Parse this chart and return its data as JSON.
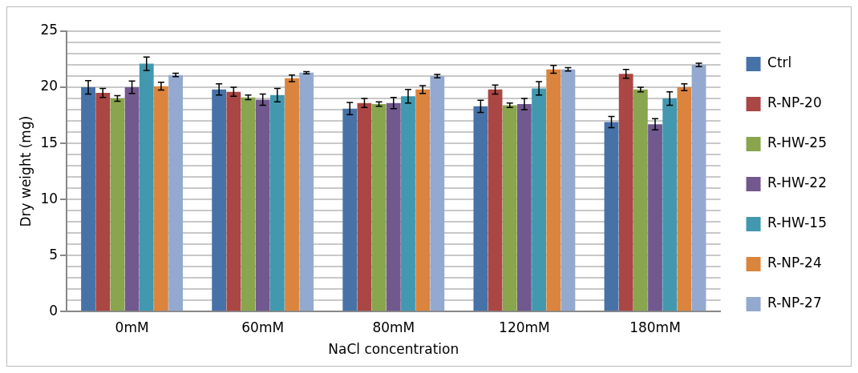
{
  "chart_data": {
    "type": "bar",
    "xlabel": "NaCl concentration",
    "ylabel": "Dry weight (mg)",
    "categories": [
      "0mM",
      "60mM",
      "80mM",
      "120mM",
      "180mM"
    ],
    "series": [
      {
        "name": "Ctrl",
        "color": "#4672a8",
        "values": [
          20.0,
          19.8,
          18.1,
          18.3,
          16.9
        ],
        "errors": [
          0.6,
          0.5,
          0.55,
          0.55,
          0.5
        ]
      },
      {
        "name": "R-NP-20",
        "color": "#aa4643",
        "values": [
          19.5,
          19.6,
          18.6,
          19.8,
          21.2
        ],
        "errors": [
          0.4,
          0.4,
          0.4,
          0.4,
          0.4
        ]
      },
      {
        "name": "R-HW-25",
        "color": "#89a54e",
        "values": [
          19.0,
          19.1,
          18.5,
          18.4,
          19.8
        ],
        "errors": [
          0.25,
          0.2,
          0.2,
          0.2,
          0.2
        ]
      },
      {
        "name": "R-HW-22",
        "color": "#71588f",
        "values": [
          20.0,
          18.9,
          18.6,
          18.5,
          16.7
        ],
        "errors": [
          0.55,
          0.5,
          0.5,
          0.5,
          0.5
        ]
      },
      {
        "name": "R-HW-15",
        "color": "#4198af",
        "values": [
          22.1,
          19.3,
          19.2,
          19.9,
          19.0
        ],
        "errors": [
          0.6,
          0.6,
          0.6,
          0.6,
          0.6
        ]
      },
      {
        "name": "R-NP-24",
        "color": "#db843d",
        "values": [
          20.1,
          20.8,
          19.8,
          21.6,
          20.0
        ],
        "errors": [
          0.35,
          0.3,
          0.35,
          0.35,
          0.3
        ]
      },
      {
        "name": "R-NP-27",
        "color": "#93a9cf",
        "values": [
          21.1,
          21.3,
          21.0,
          21.6,
          22.0
        ],
        "errors": [
          0.15,
          0.1,
          0.15,
          0.15,
          0.15
        ]
      }
    ],
    "ylim": [
      0,
      25
    ],
    "yticks": [
      0,
      {
        "value": 1,
        "label": null
      },
      {
        "value": 2,
        "label": null
      },
      {
        "value": 3,
        "label": null
      },
      {
        "value": 4,
        "label": null
      },
      5,
      {
        "value": 6,
        "label": null
      },
      {
        "value": 7,
        "label": null
      },
      {
        "value": 8,
        "label": null
      },
      {
        "value": 9,
        "label": null
      },
      10,
      {
        "value": 11,
        "label": null
      },
      {
        "value": 12,
        "label": null
      },
      {
        "value": 13,
        "label": null
      },
      {
        "value": 14,
        "label": null
      },
      15,
      {
        "value": 16,
        "label": null
      },
      {
        "value": 17,
        "label": null
      },
      {
        "value": 18,
        "label": null
      },
      {
        "value": 19,
        "label": null
      },
      20,
      {
        "value": 21,
        "label": null
      },
      {
        "value": 22,
        "label": null
      },
      {
        "value": 23,
        "label": null
      },
      {
        "value": 24,
        "label": null
      },
      25
    ],
    "grid": "y",
    "legend": "right"
  }
}
